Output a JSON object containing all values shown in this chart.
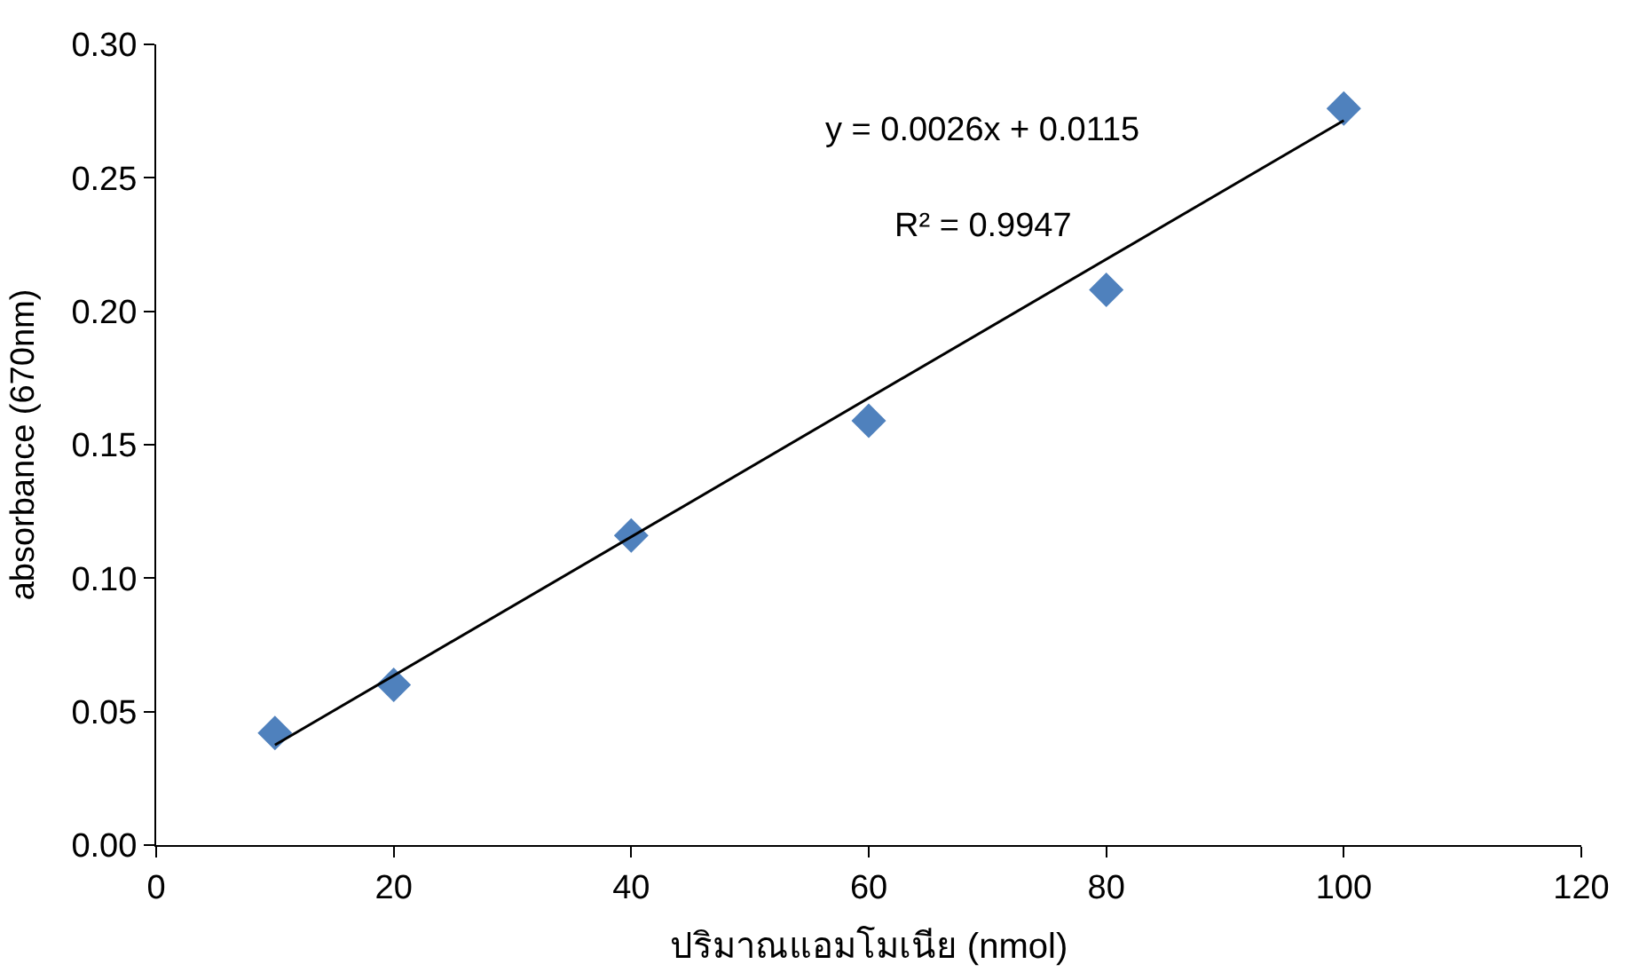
{
  "chart_data": {
    "type": "scatter",
    "xlabel": "ปริมาณแอมโมเนีย (nmol)",
    "ylabel": "absorbance (670nm)",
    "x": [
      10,
      20,
      40,
      60,
      80,
      100
    ],
    "series": [
      {
        "color": "#4f81bd",
        "marker": "diamond",
        "values": [
          0.042,
          0.06,
          0.116,
          0.159,
          0.208,
          0.276
        ]
      },
      {
        "type": "line",
        "color": "#000000",
        "marker": "none",
        "line_style": "solid",
        "x": [
          10,
          100
        ],
        "values": [
          0.0375,
          0.2715
        ]
      }
    ],
    "annotations": [
      "y = 0.0026x + 0.0115",
      "R² = 0.9947"
    ],
    "xlim": [
      0,
      120
    ],
    "xticks": [
      0,
      20,
      40,
      60,
      80,
      100,
      120
    ],
    "ylim": [
      0,
      0.3
    ],
    "yticks": [
      {
        "value": 0,
        "label": "0.00"
      },
      {
        "value": 0.05,
        "label": "0.05"
      },
      {
        "value": 0.1,
        "label": "0.10"
      },
      {
        "value": 0.15,
        "label": "0.15"
      },
      {
        "value": 0.2,
        "label": "0.20"
      },
      {
        "value": 0.25,
        "label": "0.25"
      },
      {
        "value": 0.3,
        "label": "0.30"
      }
    ]
  }
}
